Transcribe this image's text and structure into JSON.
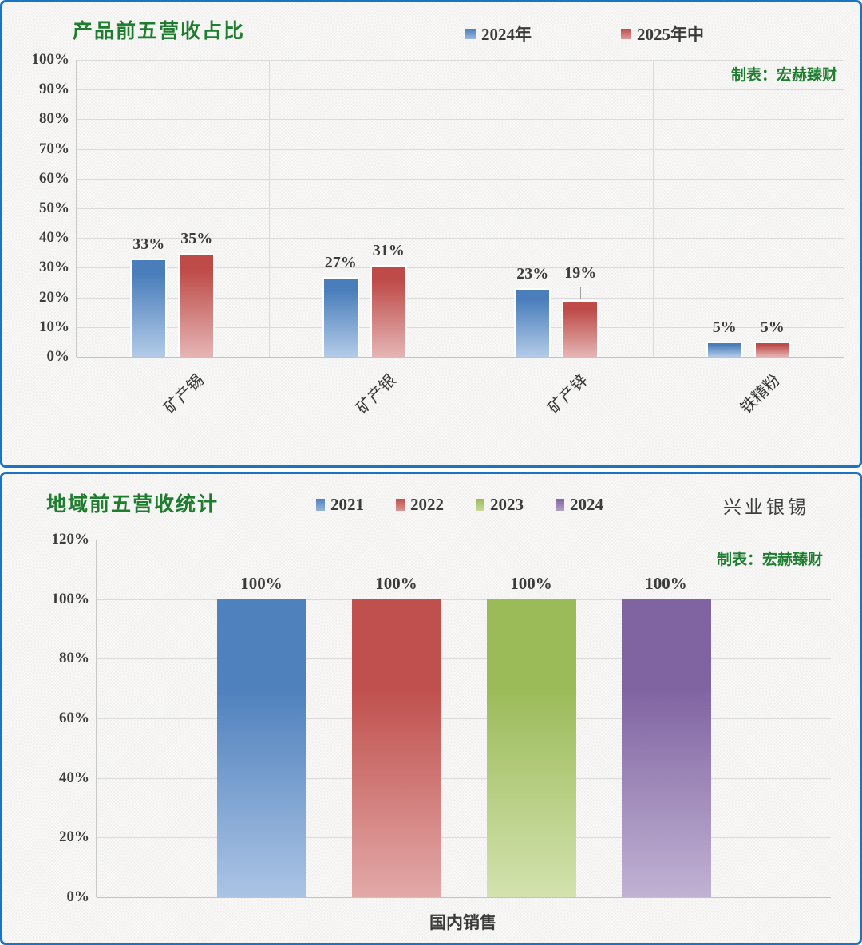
{
  "chart_data": [
    {
      "type": "bar",
      "title": "产品前五营收占比",
      "credit": "制表：宏赫臻财",
      "categories": [
        "矿产锡",
        "矿产银",
        "矿产锌",
        "铁精粉"
      ],
      "series": [
        {
          "name": "2024年",
          "color": "#4a7ebb",
          "color_light": "#b3cbe8",
          "values": [
            33,
            27,
            23,
            5
          ]
        },
        {
          "name": "2025年中",
          "color": "#be4b48",
          "color_light": "#e5b5b4",
          "values": [
            35,
            31,
            19,
            5
          ]
        }
      ],
      "value_suffix": "%",
      "ylim": [
        0,
        100
      ],
      "ytick_step": 10,
      "yticks": [
        "100%",
        "90%",
        "80%",
        "70%",
        "60%",
        "50%",
        "40%",
        "30%",
        "20%",
        "10%",
        "0%"
      ],
      "legend_position": "top",
      "grid": true,
      "callout": {
        "series_index": 1,
        "category_index": 2
      }
    },
    {
      "type": "bar",
      "title": "地域前五营收统计",
      "credit": "制表：宏赫臻财",
      "watermark": "兴业银锡",
      "categories": [
        "国内销售"
      ],
      "series": [
        {
          "name": "2021",
          "color": "#4f81bd",
          "color_light": "#abc4e5",
          "values": [
            100
          ]
        },
        {
          "name": "2022",
          "color": "#c0504d",
          "color_light": "#e2a9a8",
          "values": [
            100
          ]
        },
        {
          "name": "2023",
          "color": "#9bbb59",
          "color_light": "#d3e2ae",
          "values": [
            100
          ]
        },
        {
          "name": "2024",
          "color": "#8064a2",
          "color_light": "#c1b2d3",
          "values": [
            100
          ]
        }
      ],
      "value_suffix": "%",
      "ylim": [
        0,
        120
      ],
      "ytick_step": 20,
      "yticks": [
        "120%",
        "100%",
        "80%",
        "60%",
        "40%",
        "20%",
        "0%"
      ],
      "legend_position": "top",
      "grid": true
    }
  ],
  "colors": {
    "accent_green": "#1f7d2f",
    "text_dark": "#3d3d3d",
    "grid": "#dadada",
    "axis": "#c2c2c2",
    "panel_border": "#1a74c4",
    "bar_blue": "#4a7ebb",
    "bar_red": "#be4b48",
    "bar_green": "#9bbb59",
    "bar_purple": "#8064a2"
  }
}
